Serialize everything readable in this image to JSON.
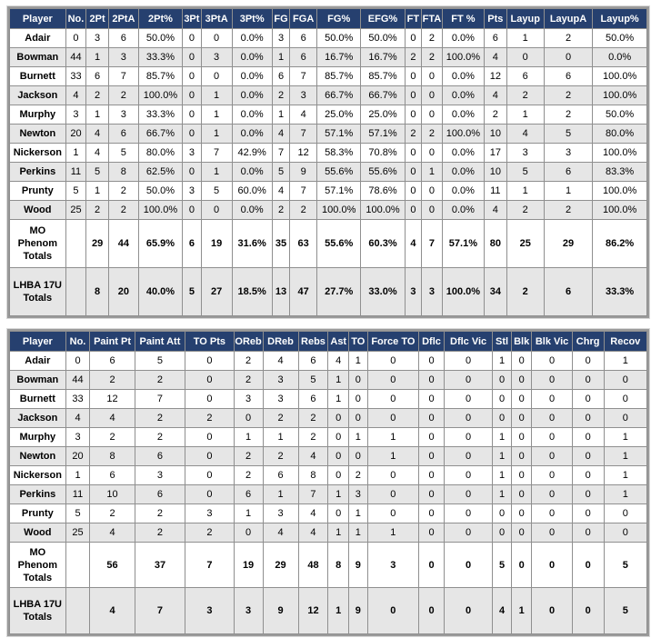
{
  "shooting": {
    "headers": [
      "Player",
      "No.",
      "2Pt",
      "2PtA",
      "2Pt%",
      "3Pt",
      "3PtA",
      "3Pt%",
      "FG",
      "FGA",
      "FG%",
      "EFG%",
      "FT",
      "FTA",
      "FT %",
      "Pts",
      "Layup",
      "LayupA",
      "Layup%"
    ],
    "rows": [
      [
        "Adair",
        "0",
        "3",
        "6",
        "50.0%",
        "0",
        "0",
        "0.0%",
        "3",
        "6",
        "50.0%",
        "50.0%",
        "0",
        "2",
        "0.0%",
        "6",
        "1",
        "2",
        "50.0%"
      ],
      [
        "Bowman",
        "44",
        "1",
        "3",
        "33.3%",
        "0",
        "3",
        "0.0%",
        "1",
        "6",
        "16.7%",
        "16.7%",
        "2",
        "2",
        "100.0%",
        "4",
        "0",
        "0",
        "0.0%"
      ],
      [
        "Burnett",
        "33",
        "6",
        "7",
        "85.7%",
        "0",
        "0",
        "0.0%",
        "6",
        "7",
        "85.7%",
        "85.7%",
        "0",
        "0",
        "0.0%",
        "12",
        "6",
        "6",
        "100.0%"
      ],
      [
        "Jackson",
        "4",
        "2",
        "2",
        "100.0%",
        "0",
        "1",
        "0.0%",
        "2",
        "3",
        "66.7%",
        "66.7%",
        "0",
        "0",
        "0.0%",
        "4",
        "2",
        "2",
        "100.0%"
      ],
      [
        "Murphy",
        "3",
        "1",
        "3",
        "33.3%",
        "0",
        "1",
        "0.0%",
        "1",
        "4",
        "25.0%",
        "25.0%",
        "0",
        "0",
        "0.0%",
        "2",
        "1",
        "2",
        "50.0%"
      ],
      [
        "Newton",
        "20",
        "4",
        "6",
        "66.7%",
        "0",
        "1",
        "0.0%",
        "4",
        "7",
        "57.1%",
        "57.1%",
        "2",
        "2",
        "100.0%",
        "10",
        "4",
        "5",
        "80.0%"
      ],
      [
        "Nickerson",
        "1",
        "4",
        "5",
        "80.0%",
        "3",
        "7",
        "42.9%",
        "7",
        "12",
        "58.3%",
        "70.8%",
        "0",
        "0",
        "0.0%",
        "17",
        "3",
        "3",
        "100.0%"
      ],
      [
        "Perkins",
        "11",
        "5",
        "8",
        "62.5%",
        "0",
        "1",
        "0.0%",
        "5",
        "9",
        "55.6%",
        "55.6%",
        "0",
        "1",
        "0.0%",
        "10",
        "5",
        "6",
        "83.3%"
      ],
      [
        "Prunty",
        "5",
        "1",
        "2",
        "50.0%",
        "3",
        "5",
        "60.0%",
        "4",
        "7",
        "57.1%",
        "78.6%",
        "0",
        "0",
        "0.0%",
        "11",
        "1",
        "1",
        "100.0%"
      ],
      [
        "Wood",
        "25",
        "2",
        "2",
        "100.0%",
        "0",
        "0",
        "0.0%",
        "2",
        "2",
        "100.0%",
        "100.0%",
        "0",
        "0",
        "0.0%",
        "4",
        "2",
        "2",
        "100.0%"
      ]
    ],
    "totals": [
      [
        "MO Phenom Totals",
        "",
        "29",
        "44",
        "65.9%",
        "6",
        "19",
        "31.6%",
        "35",
        "63",
        "55.6%",
        "60.3%",
        "4",
        "7",
        "57.1%",
        "80",
        "25",
        "29",
        "86.2%"
      ],
      [
        "LHBA 17U Totals",
        "",
        "8",
        "20",
        "40.0%",
        "5",
        "27",
        "18.5%",
        "13",
        "47",
        "27.7%",
        "33.0%",
        "3",
        "3",
        "100.0%",
        "34",
        "2",
        "6",
        "33.3%"
      ]
    ]
  },
  "misc": {
    "headers": [
      "Player",
      "No.",
      "Paint Pt",
      "Paint Att",
      "TO Pts",
      "OReb",
      "DReb",
      "Rebs",
      "Ast",
      "TO",
      "Force TO",
      "Dflc",
      "Dflc Vic",
      "Stl",
      "Blk",
      "Blk Vic",
      "Chrg",
      "Recov"
    ],
    "rows": [
      [
        "Adair",
        "0",
        "6",
        "5",
        "0",
        "2",
        "4",
        "6",
        "4",
        "1",
        "0",
        "0",
        "0",
        "1",
        "0",
        "0",
        "0",
        "1"
      ],
      [
        "Bowman",
        "44",
        "2",
        "2",
        "0",
        "2",
        "3",
        "5",
        "1",
        "0",
        "0",
        "0",
        "0",
        "0",
        "0",
        "0",
        "0",
        "0"
      ],
      [
        "Burnett",
        "33",
        "12",
        "7",
        "0",
        "3",
        "3",
        "6",
        "1",
        "0",
        "0",
        "0",
        "0",
        "0",
        "0",
        "0",
        "0",
        "0"
      ],
      [
        "Jackson",
        "4",
        "4",
        "2",
        "2",
        "0",
        "2",
        "2",
        "0",
        "0",
        "0",
        "0",
        "0",
        "0",
        "0",
        "0",
        "0",
        "0"
      ],
      [
        "Murphy",
        "3",
        "2",
        "2",
        "0",
        "1",
        "1",
        "2",
        "0",
        "1",
        "1",
        "0",
        "0",
        "1",
        "0",
        "0",
        "0",
        "1"
      ],
      [
        "Newton",
        "20",
        "8",
        "6",
        "0",
        "2",
        "2",
        "4",
        "0",
        "0",
        "1",
        "0",
        "0",
        "1",
        "0",
        "0",
        "0",
        "1"
      ],
      [
        "Nickerson",
        "1",
        "6",
        "3",
        "0",
        "2",
        "6",
        "8",
        "0",
        "2",
        "0",
        "0",
        "0",
        "1",
        "0",
        "0",
        "0",
        "1"
      ],
      [
        "Perkins",
        "11",
        "10",
        "6",
        "0",
        "6",
        "1",
        "7",
        "1",
        "3",
        "0",
        "0",
        "0",
        "1",
        "0",
        "0",
        "0",
        "1"
      ],
      [
        "Prunty",
        "5",
        "2",
        "2",
        "3",
        "1",
        "3",
        "4",
        "0",
        "1",
        "0",
        "0",
        "0",
        "0",
        "0",
        "0",
        "0",
        "0"
      ],
      [
        "Wood",
        "25",
        "4",
        "2",
        "2",
        "0",
        "4",
        "4",
        "1",
        "1",
        "1",
        "0",
        "0",
        "0",
        "0",
        "0",
        "0",
        "0"
      ]
    ],
    "totals": [
      [
        "MO Phenom Totals",
        "",
        "56",
        "37",
        "7",
        "19",
        "29",
        "48",
        "8",
        "9",
        "3",
        "0",
        "0",
        "5",
        "0",
        "0",
        "0",
        "5"
      ],
      [
        "LHBA 17U Totals",
        "",
        "4",
        "7",
        "3",
        "3",
        "9",
        "12",
        "1",
        "9",
        "0",
        "0",
        "0",
        "4",
        "1",
        "0",
        "0",
        "5"
      ]
    ]
  },
  "colors": {
    "header_bg": "#26406f",
    "header_text": "#ffffff",
    "stripe": "#e6e6e6",
    "border": "#8f8f8f"
  }
}
